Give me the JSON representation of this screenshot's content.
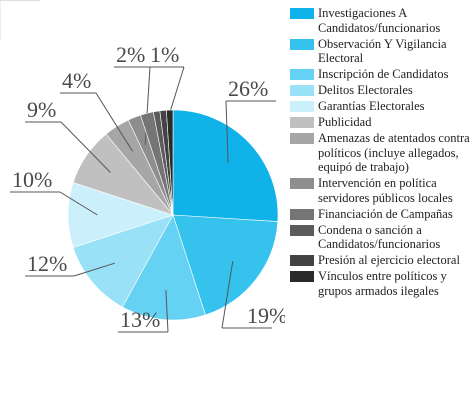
{
  "chart_data": {
    "type": "pie",
    "categories": [
      "Investigaciones A Candidatos/funcionarios",
      "Observación Y Vigilancia Electoral",
      "Inscripción de Candidatos",
      "Delitos Electorales",
      "Garantías Electorales",
      "Publicidad",
      "Amenazas de atentados contra políticos (incluye allegados, equipó de trabajo)",
      "Intervención en política servidores públicos locales",
      "Financiación de Campañas",
      "Condena o sanción a Candidatos/funcionarios",
      "Presión al ejercicio electoral",
      "Vínculos entre políticos y grupos armados ilegales"
    ],
    "values": [
      26,
      19,
      13,
      12,
      10,
      9,
      4,
      2,
      2,
      1,
      1,
      1
    ],
    "value_labels": [
      "26%",
      "19%",
      "13%",
      "12%",
      "10%",
      "9%",
      "4%",
      "2%",
      null,
      "1%",
      null,
      null
    ],
    "colors": [
      "#0fb3ea",
      "#35c3ee",
      "#66d2f3",
      "#99e1f7",
      "#ccf0fb",
      "#c0c0c0",
      "#a6a6a6",
      "#8e8e8e",
      "#757575",
      "#5c5c5c",
      "#434343",
      "#2a2a2a"
    ]
  }
}
